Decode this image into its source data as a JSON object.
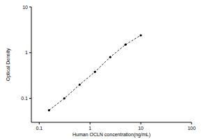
{
  "chart_data": {
    "type": "line",
    "x_label": "Human OCLN concentration(ng/mL)",
    "y_label": "Optical Density",
    "log": true,
    "marker": "circle",
    "line_style": "dashed",
    "color": "#000000",
    "x": [
      0.156,
      0.312,
      0.625,
      1.25,
      2.5,
      5,
      10
    ],
    "values": [
      0.055,
      0.1,
      0.2,
      0.38,
      0.8,
      1.5,
      2.4
    ],
    "xlim": [
      0.07,
      100
    ],
    "xticks": [
      0.1,
      1,
      10,
      100
    ],
    "ylim": [
      0.03,
      10
    ],
    "yticks": [
      0.1,
      1,
      10
    ]
  }
}
